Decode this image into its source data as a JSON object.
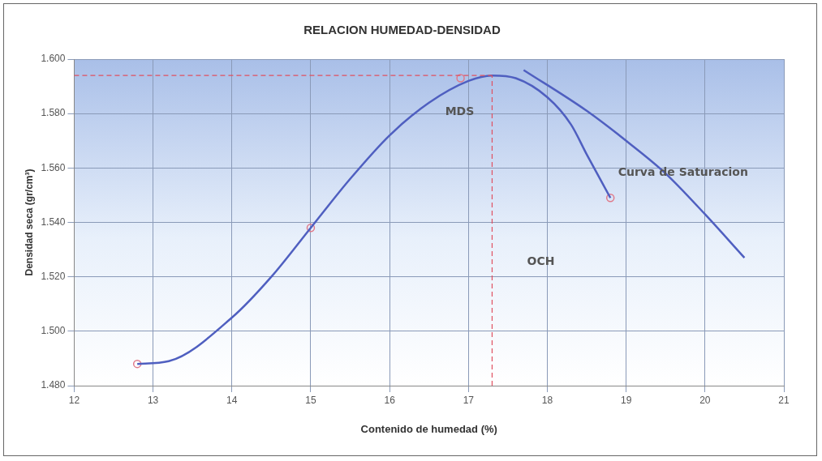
{
  "chart_data": {
    "type": "line",
    "title": "RELACION HUMEDAD-DENSIDAD",
    "xlabel": "Contenido de humedad (%)",
    "ylabel": "Densidad seca (gr/cm³)",
    "xlim": [
      12,
      21
    ],
    "xticks": [
      12,
      13,
      14,
      15,
      16,
      17,
      18,
      19,
      20,
      21
    ],
    "ylim": [
      1.48,
      1.6
    ],
    "yticks": [
      {
        "value": 1.48,
        "label": "1.480"
      },
      {
        "value": 1.5,
        "label": "1.500"
      },
      {
        "value": 1.52,
        "label": "1.520"
      },
      {
        "value": 1.54,
        "label": "1.540"
      },
      {
        "value": 1.56,
        "label": "1.560"
      },
      {
        "value": 1.58,
        "label": "1.580"
      },
      {
        "value": 1.6,
        "label": "1.600"
      }
    ],
    "grid": true,
    "legend": false,
    "marker": "none",
    "line_style": "solid",
    "series": [
      {
        "color": "#4f5fc0",
        "x": [
          12.8,
          13.2,
          14,
          14.5,
          15,
          15.5,
          16,
          16.5,
          17,
          17.3,
          17.6,
          18,
          18.3,
          18.5,
          18.8
        ],
        "values": [
          1.488,
          1.489,
          1.505,
          1.52,
          1.538,
          1.556,
          1.572,
          1.584,
          1.592,
          1.594,
          1.593,
          1.586,
          1.576,
          1.565,
          1.549
        ]
      },
      {
        "type": "scatter",
        "color": "#e07a8a",
        "marker": "circle",
        "x": [
          12.8,
          15,
          16.9,
          18.8
        ],
        "values": [
          1.488,
          1.538,
          1.593,
          1.549
        ]
      },
      {
        "name": "Curva de Saturacion",
        "color": "#4f5fc0",
        "x": [
          17.7,
          18.5,
          19,
          19.5,
          20,
          20.5
        ],
        "values": [
          1.596,
          1.581,
          1.57,
          1.558,
          1.543,
          1.527
        ]
      }
    ],
    "ref_lines": [
      {
        "axis": "y",
        "value": 1.594,
        "color": "#e05060",
        "line_style": "dashed"
      },
      {
        "axis": "x",
        "value": 17.3,
        "color": "#e05060",
        "line_style": "dashed"
      }
    ],
    "annotations": [
      "MDS",
      "OCH"
    ]
  }
}
